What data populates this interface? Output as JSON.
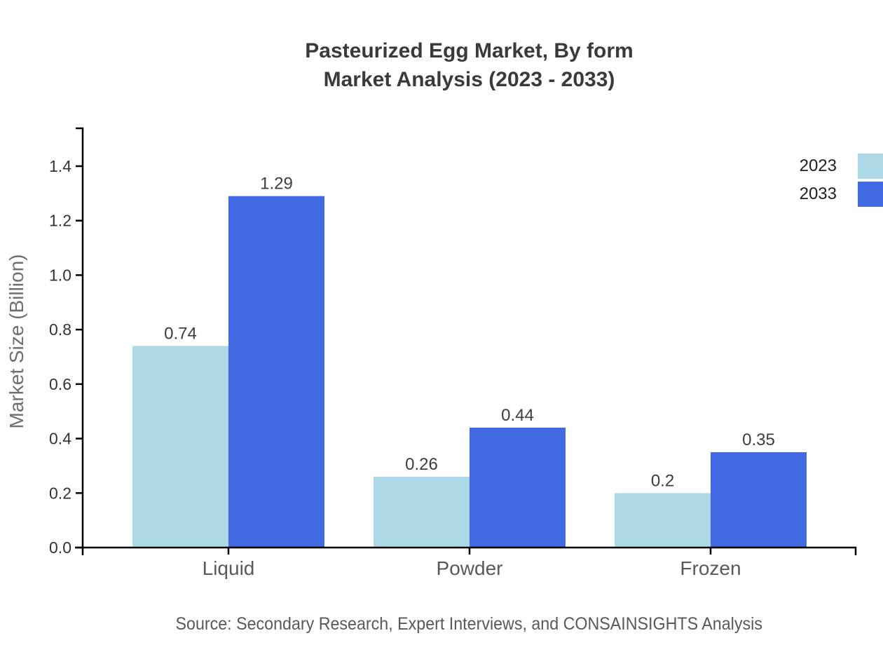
{
  "title": {
    "line1": "Pasteurized Egg Market, By form",
    "line2": "Market Analysis (2023 - 2033)"
  },
  "source_text": "Source: Secondary Research, Expert Interviews, and CONSAINSIGHTS Analysis",
  "legend": {
    "items": [
      {
        "label": "2023",
        "color": "#ADD8E6"
      },
      {
        "label": "2033",
        "color": "#4169E1"
      }
    ]
  },
  "colors": {
    "series_2023": "#ADD8E6",
    "series_2033": "#4169E1",
    "axis": "#000000",
    "title_text": "#3A3A3A",
    "tick_label_text": "#333333",
    "category_label_text": "#58595B",
    "value_label_text": "#3D3D3D",
    "ylabel_text": "#6F6F6F",
    "legend_text": "#1F1F1F",
    "source_text": "#595959"
  },
  "chart_data": {
    "type": "bar",
    "title": "Pasteurized Egg Market, By form — Market Analysis (2023 - 2033)",
    "categories": [
      "Liquid",
      "Powder",
      "Frozen"
    ],
    "series": [
      {
        "name": "2023",
        "color": "#ADD8E6",
        "values": [
          0.74,
          0.26,
          0.2
        ]
      },
      {
        "name": "2033",
        "color": "#4169E1",
        "values": [
          1.29,
          0.44,
          0.35
        ]
      }
    ],
    "xlabel": "",
    "ylabel": "Market Size (Billion)",
    "ylim": [
      0,
      1.54
    ],
    "yticks": [
      0.0,
      0.2,
      0.4,
      0.6,
      0.8,
      1.0,
      1.2,
      1.4
    ],
    "grid": false,
    "legend_position": "top-right",
    "value_labels": true
  }
}
